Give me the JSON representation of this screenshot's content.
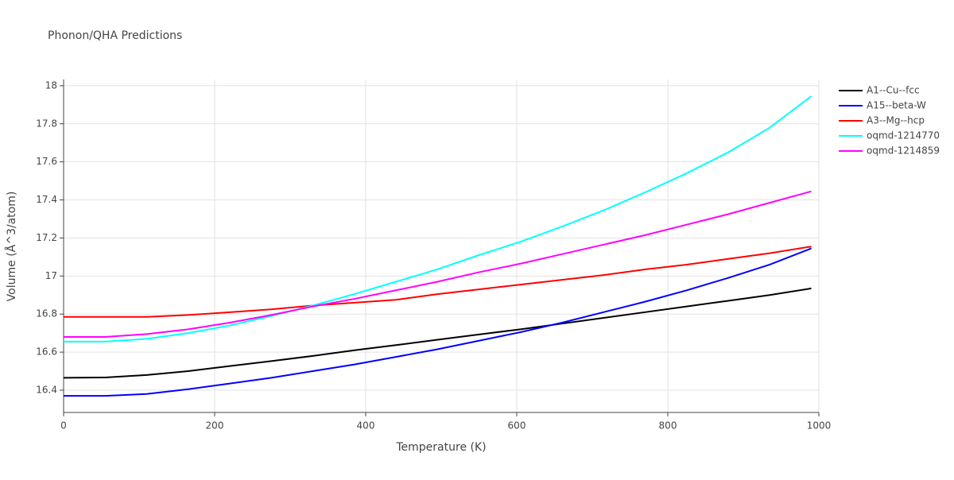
{
  "chart_data": {
    "type": "line",
    "title": "Phonon/QHA Predictions",
    "x_label": "Temperature (K)",
    "y_label": "Volume (Å^3/atom)",
    "x": [
      0,
      55,
      110,
      165,
      220,
      275,
      330,
      385,
      440,
      495,
      550,
      605,
      660,
      715,
      770,
      825,
      880,
      935,
      990
    ],
    "series": [
      {
        "name": "A1--Cu--fcc",
        "color": "#000000",
        "values": [
          16.465,
          16.467,
          16.48,
          16.5,
          16.527,
          16.553,
          16.58,
          16.61,
          16.637,
          16.665,
          16.693,
          16.72,
          16.75,
          16.78,
          16.81,
          16.84,
          16.87,
          16.9,
          16.935
        ]
      },
      {
        "name": "A15--beta-W",
        "color": "#0000ff",
        "values": [
          16.37,
          16.37,
          16.38,
          16.405,
          16.435,
          16.465,
          16.5,
          16.535,
          16.575,
          16.615,
          16.66,
          16.705,
          16.755,
          16.81,
          16.865,
          16.925,
          16.99,
          17.06,
          17.145
        ]
      },
      {
        "name": "A3--Mg--hcp",
        "color": "#ff0000",
        "values": [
          16.785,
          16.785,
          16.785,
          16.795,
          16.81,
          16.825,
          16.845,
          16.86,
          16.875,
          16.905,
          16.93,
          16.955,
          16.98,
          17.005,
          17.035,
          17.06,
          17.09,
          17.12,
          17.155
        ]
      },
      {
        "name": "oqmd-1214770",
        "color": "#00ffff",
        "values": [
          16.655,
          16.655,
          16.67,
          16.7,
          16.74,
          16.79,
          16.845,
          16.905,
          16.97,
          17.035,
          17.11,
          17.18,
          17.26,
          17.345,
          17.44,
          17.54,
          17.65,
          17.78,
          17.945
        ]
      },
      {
        "name": "oqmd-1214859",
        "color": "#ff00ff",
        "values": [
          16.68,
          16.68,
          16.695,
          16.72,
          16.755,
          16.795,
          16.84,
          16.88,
          16.925,
          16.97,
          17.02,
          17.065,
          17.115,
          17.165,
          17.215,
          17.27,
          17.325,
          17.385,
          17.445
        ]
      }
    ],
    "xlim": [
      0,
      1000
    ],
    "xticks": [
      0,
      200,
      400,
      600,
      800,
      1000
    ],
    "ylim": [
      16.283,
      18.033
    ],
    "yticks": [
      16.4,
      16.6,
      16.8,
      17,
      17.2,
      17.4,
      17.6,
      17.8,
      18
    ],
    "grid": true,
    "legend": "right"
  }
}
